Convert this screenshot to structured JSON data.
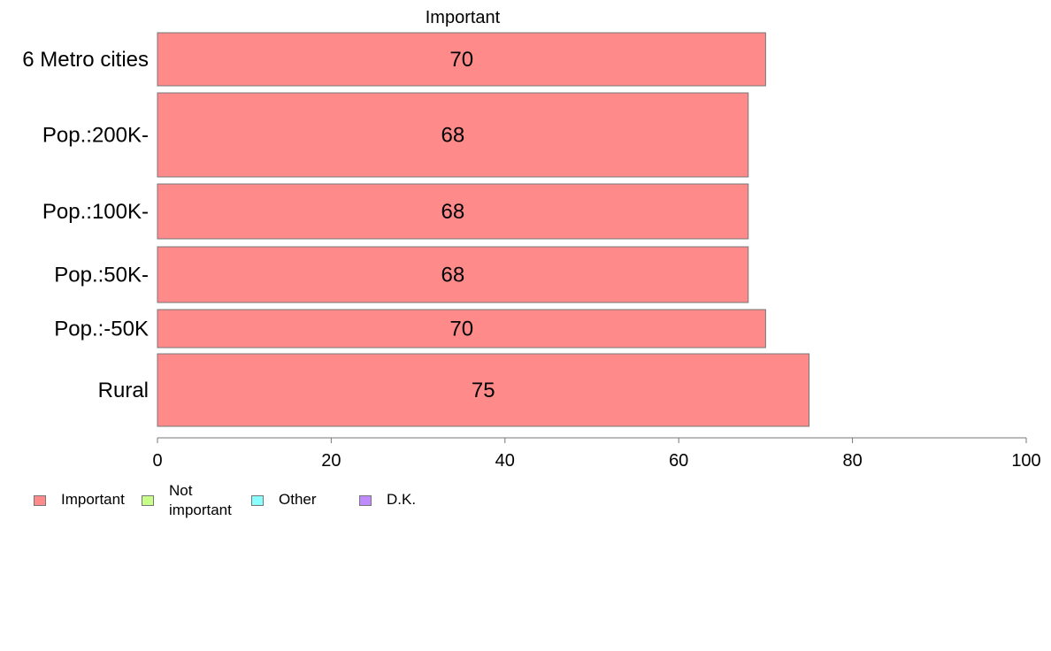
{
  "chart_data": {
    "type": "bar",
    "orientation": "horizontal",
    "title": "Important",
    "categories": [
      "6 Metro cities",
      "Pop.:200K-",
      "Pop.:100K-",
      "Pop.:50K-",
      "Pop.:-50K",
      "Rural"
    ],
    "series": [
      {
        "name": "Important",
        "color": "#ff8a8a",
        "values": [
          70,
          68,
          68,
          68,
          70,
          75
        ],
        "value_labels": [
          "70",
          "68",
          "68",
          "68",
          "70",
          "75"
        ]
      }
    ],
    "xlim": [
      0,
      100
    ],
    "xticks": [
      0,
      20,
      40,
      60,
      80,
      100
    ],
    "xtick_labels": [
      "0",
      "20",
      "40",
      "60",
      "80",
      "100"
    ],
    "grid": false,
    "legend": {
      "placement": "bottom-left",
      "items": [
        {
          "label": "Important",
          "color": "#ff8a8a"
        },
        {
          "label": "Not important",
          "label_lines": [
            "Not",
            "important"
          ],
          "color": "#c8ff8a"
        },
        {
          "label": "Other",
          "color": "#8affff"
        },
        {
          "label": "D.K.",
          "color": "#c08aff"
        }
      ]
    }
  }
}
